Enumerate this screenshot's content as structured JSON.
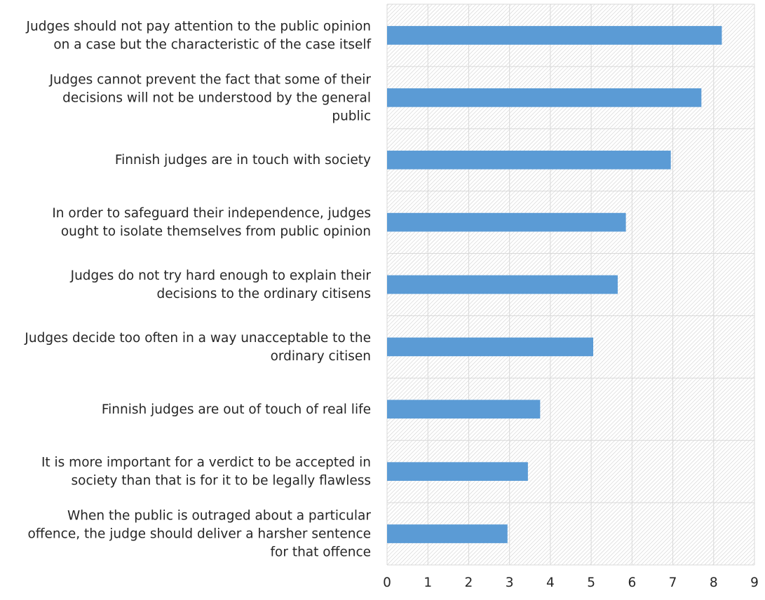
{
  "chart_data": {
    "type": "bar",
    "orientation": "horizontal",
    "categories": [
      [
        "Judges should not pay attention to the public opinion",
        "on a case but the characteristic of the case itself"
      ],
      [
        "Judges cannot prevent the fact that some of their",
        "decisions will not be understood by the general",
        "public"
      ],
      [
        "Finnish judges are in touch with society"
      ],
      [
        "In order to safeguard their independence, judges",
        "ought to isolate themselves from public opinion"
      ],
      [
        "Judges do not try hard enough to explain their",
        "decisions to the ordinary citisens"
      ],
      [
        "Judges decide too often in a way unacceptable to the",
        "ordinary citisen"
      ],
      [
        "Finnish judges are out of touch of real life"
      ],
      [
        "It is more important for a verdict to be accepted in",
        "society than that is for it to be legally flawless"
      ],
      [
        "When the public is outraged about a particular",
        "offence, the judge should deliver a harsher sentence",
        "for that offence"
      ]
    ],
    "values": [
      8.2,
      7.7,
      6.95,
      5.85,
      5.65,
      5.05,
      3.75,
      3.45,
      2.95
    ],
    "xlim": [
      0,
      9
    ],
    "xticks": [
      "0",
      "1",
      "2",
      "3",
      "4",
      "5",
      "6",
      "7",
      "8",
      "9"
    ],
    "grid": true,
    "legend": "none",
    "bar_color": "#5b9bd5",
    "grid_color": "#d9d9d9",
    "hatch_color": "#d0d0d0"
  }
}
